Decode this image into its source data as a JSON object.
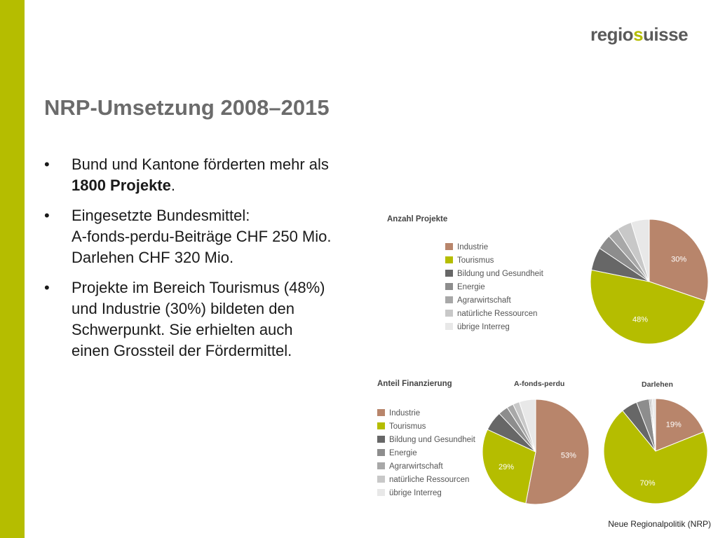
{
  "brand": {
    "logo_left": "regio",
    "logo_mark": "s",
    "logo_right": "uisse",
    "accent": "#b5bd00"
  },
  "title": "NRP-Umsetzung 2008–2015",
  "bullets": [
    {
      "marker": "•",
      "lines": [
        {
          "text": "Bund und Kantone förderten mehr als"
        },
        {
          "text": "1800 Projekte.",
          "bold": "1800 Projekte",
          "rest": "."
        }
      ]
    },
    {
      "marker": "•",
      "lines": [
        {
          "text": "Eingesetzte Bundesmittel:"
        },
        {
          "text": "A-fonds-perdu-Beiträge CHF 250 Mio."
        },
        {
          "text": "Darlehen CHF 320 Mio."
        }
      ]
    },
    {
      "marker": "•",
      "lines": [
        {
          "text": "Projekte im Bereich Tourismus (48%)"
        },
        {
          "text": "und Industrie (30%) bildeten den"
        },
        {
          "text": "Schwerpunkt. Sie erhielten auch"
        },
        {
          "text": "einen Grossteil der Fördermittel."
        }
      ]
    }
  ],
  "legend_categories": [
    {
      "label": "Industrie",
      "color": "#b8856b"
    },
    {
      "label": "Tourismus",
      "color": "#b5bd00"
    },
    {
      "label": "Bildung und Gesundheit",
      "color": "#676767"
    },
    {
      "label": "Energie",
      "color": "#8d8d8d"
    },
    {
      "label": "Agrarwirtschaft",
      "color": "#a8a8a8"
    },
    {
      "label": "natürliche Ressourcen",
      "color": "#c8c8c8"
    },
    {
      "label": "übrige Interreg",
      "color": "#e8e8e8"
    }
  ],
  "section_top_title": "Anzahl Projekte",
  "section_bottom_title": "Anteil Finanzierung",
  "chart_data": [
    {
      "type": "pie",
      "title": "Anzahl Projekte",
      "categories": [
        "Industrie",
        "Tourismus",
        "Bildung und Gesundheit",
        "Energie",
        "Agrarwirtschaft",
        "natürliche Ressourcen",
        "übrige Interreg"
      ],
      "values": [
        30,
        48,
        6,
        4,
        3,
        4,
        5
      ],
      "data_labels": [
        "30%",
        "48%",
        "",
        "",
        "",
        "",
        ""
      ]
    },
    {
      "type": "pie",
      "title": "A-fonds-perdu",
      "categories": [
        "Industrie",
        "Tourismus",
        "Bildung und Gesundheit",
        "Energie",
        "Agrarwirtschaft",
        "natürliche Ressourcen",
        "übrige Interreg"
      ],
      "values": [
        53,
        29,
        6,
        3,
        2,
        2,
        5
      ],
      "data_labels": [
        "53%",
        "29%",
        "",
        "",
        "",
        "",
        ""
      ]
    },
    {
      "type": "pie",
      "title": "Darlehen",
      "categories": [
        "Industrie",
        "Tourismus",
        "Bildung und Gesundheit",
        "Energie",
        "Agrarwirtschaft",
        "natürliche Ressourcen",
        "übrige Interreg"
      ],
      "values": [
        19,
        70,
        5,
        4,
        0.5,
        0.5,
        1
      ],
      "data_labels": [
        "19%",
        "70%",
        "",
        "",
        "",
        "",
        ""
      ]
    }
  ],
  "footer": "Neue Regionalpolitik (NRP)"
}
